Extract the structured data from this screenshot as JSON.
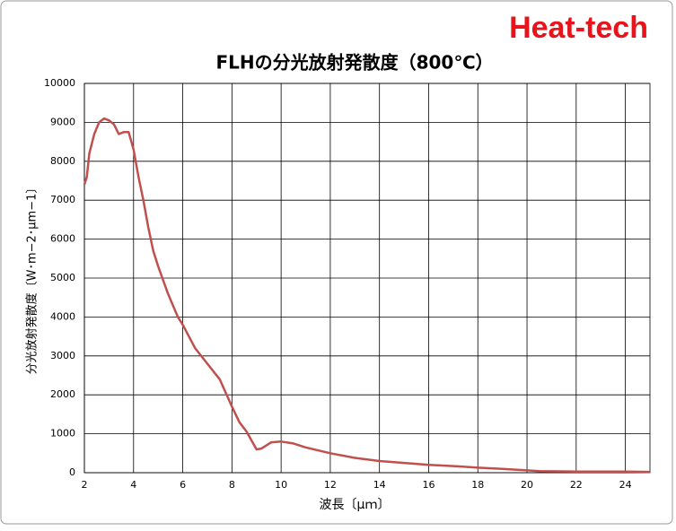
{
  "brand": "Heat-tech",
  "chart_data": {
    "type": "line",
    "title": "FLHの分光放射発散度（800℃）",
    "x_label": "波長〔μｍ〕",
    "y_label": "分光放射発散度〔W･m−2･μm−1〕",
    "x": [
      2.0,
      2.1,
      2.2,
      2.4,
      2.6,
      2.8,
      3.0,
      3.2,
      3.4,
      3.6,
      3.8,
      4.0,
      4.2,
      4.4,
      4.6,
      4.8,
      5.0,
      5.4,
      5.8,
      6.0,
      6.5,
      7.0,
      7.5,
      8.0,
      8.3,
      8.6,
      9.0,
      9.2,
      9.6,
      10.0,
      10.5,
      11.0,
      12.0,
      13.0,
      14.0,
      15.0,
      16.0,
      17.0,
      18.0,
      19.0,
      20.0,
      20.5,
      22.0,
      24.0,
      25.0
    ],
    "series": [
      {
        "name": "FLH",
        "color": "#c0504d",
        "values": [
          7400,
          7600,
          8200,
          8700,
          9000,
          9100,
          9050,
          8950,
          8700,
          8750,
          8750,
          8300,
          7600,
          7000,
          6300,
          5700,
          5300,
          4600,
          4000,
          3800,
          3200,
          2800,
          2400,
          1700,
          1300,
          1050,
          600,
          620,
          780,
          800,
          750,
          650,
          500,
          380,
          300,
          250,
          200,
          170,
          130,
          100,
          60,
          40,
          30,
          30,
          20
        ]
      }
    ],
    "xlim": [
      2,
      25
    ],
    "xticks": [
      2,
      4,
      6,
      8,
      10,
      12,
      14,
      16,
      18,
      20,
      22,
      24
    ],
    "ylim": [
      0,
      10000
    ],
    "yticks": [
      0,
      1000,
      2000,
      3000,
      4000,
      5000,
      6000,
      7000,
      8000,
      9000,
      10000
    ],
    "grid": true
  }
}
